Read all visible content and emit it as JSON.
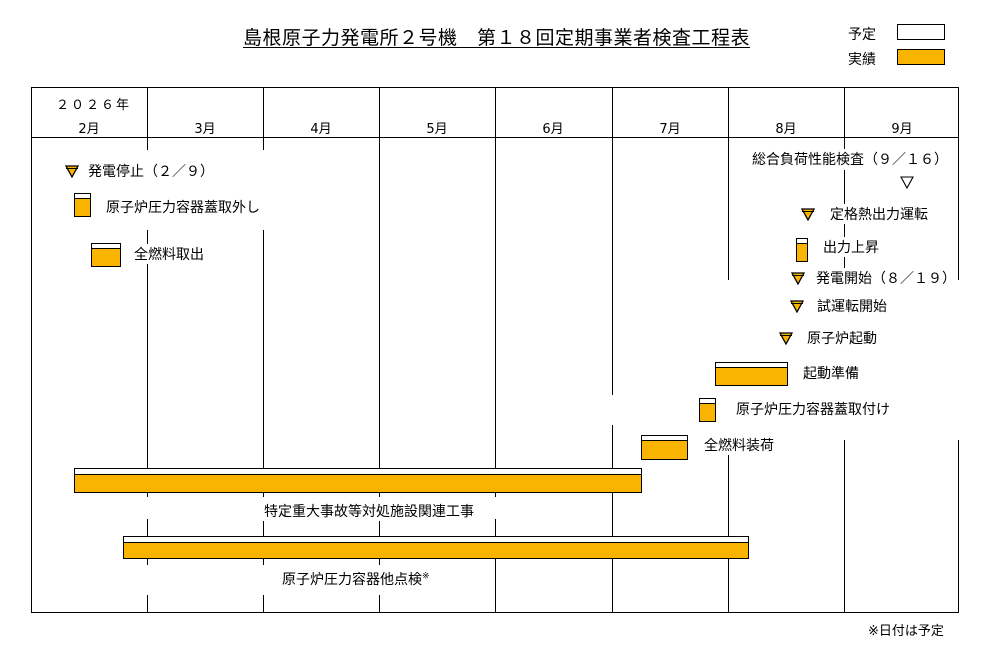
{
  "title": "島根原子力発電所２号機　第１８回定期事業者検査工程表",
  "legend": {
    "plan_label": "予定",
    "actual_label": "実績",
    "plan_color": "#ffffff",
    "actual_color": "#f8b400"
  },
  "header": {
    "year": "２０２６年",
    "months": [
      "2月",
      "3月",
      "4月",
      "5月",
      "6月",
      "7月",
      "8月",
      "9月"
    ]
  },
  "events": {
    "power_stop": "発電停止（２／９）",
    "vessel_head_removal": "原子炉圧力容器蓋取外し",
    "fuel_unloading": "全燃料取出",
    "overall_load_test": "総合負荷性能検査（９／１６）",
    "rated_thermal_operation": "定格熱出力運転",
    "power_ascension": "出力上昇",
    "power_generation_start": "発電開始（８／１９）",
    "trial_operation_start": "試運転開始",
    "reactor_startup": "原子炉起動",
    "startup_preparation": "起動準備",
    "vessel_head_installation": "原子炉圧力容器蓋取付け",
    "fuel_loading": "全燃料装荷",
    "severe_accident_works": "特定重大事故等対処施設関連工事",
    "vessel_inspection": "原子炉圧力容器他点検",
    "vessel_inspection_mark": "※"
  },
  "footnote": "※日付は予定"
}
